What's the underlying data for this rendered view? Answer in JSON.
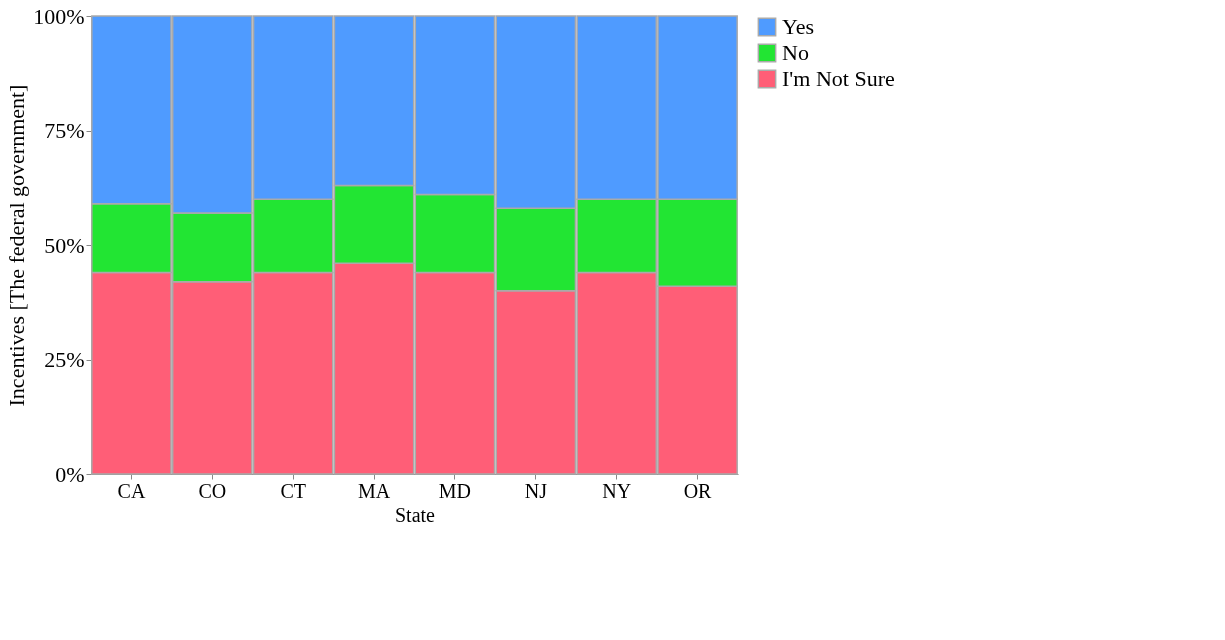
{
  "chart_data": {
    "type": "bar",
    "stacked": true,
    "xlabel": "State",
    "ylabel": "Incentives [The federal government]",
    "categories": [
      "CA",
      "CO",
      "CT",
      "MA",
      "MD",
      "NJ",
      "NY",
      "OR"
    ],
    "series": [
      {
        "name": "I'm Not Sure",
        "color": "#ff5e77",
        "values": [
          44,
          42,
          44,
          46,
          44,
          40,
          44,
          41
        ]
      },
      {
        "name": "No",
        "color": "#22e533",
        "values": [
          15,
          15,
          16,
          17,
          17,
          18,
          16,
          19
        ]
      },
      {
        "name": "Yes",
        "color": "#4f9bff",
        "values": [
          41,
          43,
          40,
          37,
          39,
          42,
          40,
          40
        ]
      }
    ],
    "ylim": [
      0,
      100
    ],
    "yticks": [
      {
        "value": 0,
        "label": "0%"
      },
      {
        "value": 25,
        "label": "25%"
      },
      {
        "value": 50,
        "label": "50%"
      },
      {
        "value": 75,
        "label": "75%"
      },
      {
        "value": 100,
        "label": "100%"
      }
    ],
    "grid": false,
    "legend": "right"
  }
}
